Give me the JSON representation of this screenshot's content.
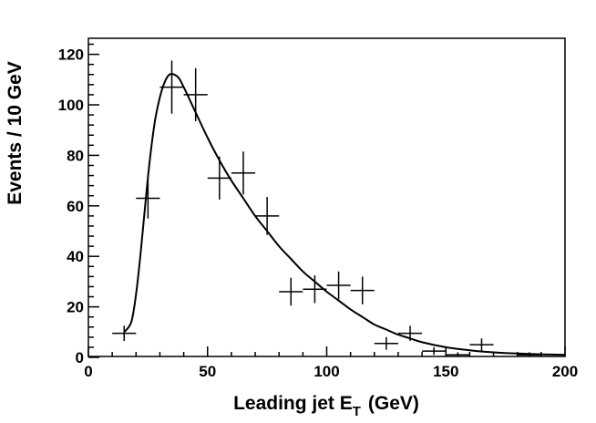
{
  "chart_data": {
    "type": "scatter",
    "title": "",
    "xlabel": "Leading jet E",
    "xlabel_subscript": "T",
    "xlabel_unit": "(GeV)",
    "ylabel": "Events / 10 GeV",
    "xlim": [
      0,
      200
    ],
    "ylim": [
      0,
      125
    ],
    "x_ticks": [
      0,
      50,
      100,
      150,
      200
    ],
    "y_ticks": [
      0,
      20,
      40,
      60,
      80,
      100,
      120
    ],
    "grid": false,
    "legend": "none",
    "series": [
      {
        "kind": "data-with-errors",
        "x": [
          15,
          25,
          35,
          45,
          55,
          65,
          75,
          85,
          95,
          105,
          115,
          125,
          135,
          145,
          155,
          165,
          175,
          185,
          195
        ],
        "x_err": 5,
        "y": [
          9.5,
          63,
          107,
          104,
          71,
          73,
          56,
          26,
          27,
          28.5,
          26.5,
          5.5,
          9.5,
          2.5,
          1,
          5,
          0,
          1,
          0
        ],
        "y_err": [
          3,
          8,
          10.5,
          10.5,
          8.5,
          8.5,
          7.5,
          5.5,
          5.5,
          5.5,
          5.5,
          2.5,
          3,
          1.5,
          1,
          2.5,
          0,
          1,
          0
        ]
      },
      {
        "kind": "fit-curve",
        "x": [
          15,
          18,
          20,
          22,
          24,
          26,
          28,
          30,
          32,
          34,
          36,
          38,
          40,
          45,
          50,
          55,
          60,
          65,
          70,
          75,
          80,
          85,
          90,
          95,
          100,
          105,
          110,
          115,
          120,
          125,
          130,
          135,
          140,
          150,
          160,
          170,
          180,
          190,
          200
        ],
        "y": [
          10,
          14,
          25,
          42,
          62,
          80,
          94,
          103,
          109,
          112,
          112,
          110.5,
          107,
          97,
          87,
          78,
          70,
          63,
          56,
          50,
          44,
          39,
          34,
          30,
          26,
          22.5,
          19,
          16,
          13,
          11,
          9,
          7.5,
          6,
          4,
          2.8,
          2,
          1.5,
          1.2,
          1
        ]
      }
    ]
  }
}
